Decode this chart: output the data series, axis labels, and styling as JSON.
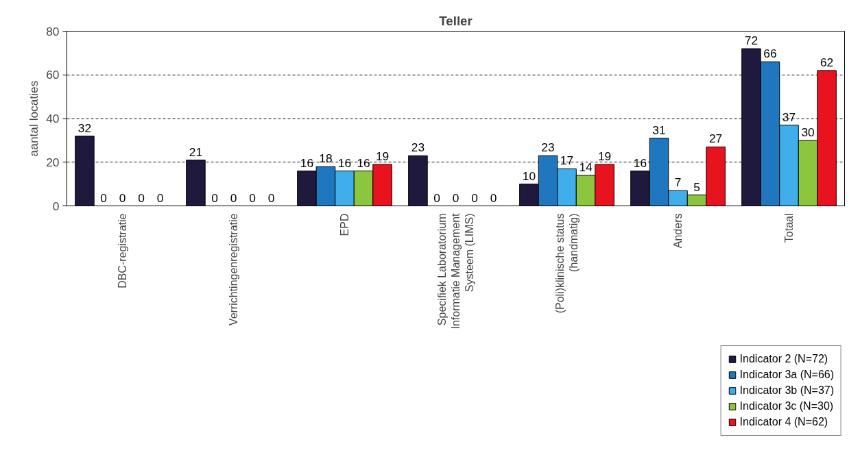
{
  "chart_data": {
    "type": "bar",
    "title": "Teller",
    "ylabel": "aantal locaties",
    "categories": [
      "DBC-registratie",
      "Verrichtingenregistratie",
      "EPD",
      "Specifiek Laboratorium Informatie Management Systeem (LIMS)",
      "(Poli)klinische status (handmatig)",
      "Anders",
      "Totaal"
    ],
    "series": [
      {
        "name": "Indicator 2 (N=72)",
        "color": "#1f1a3d",
        "values": [
          32,
          21,
          16,
          23,
          10,
          16,
          72
        ]
      },
      {
        "name": "Indicator 3a (N=66)",
        "color": "#1f77c0",
        "values": [
          0,
          0,
          18,
          0,
          23,
          31,
          66
        ]
      },
      {
        "name": "Indicator 3b (N=37)",
        "color": "#3faeea",
        "values": [
          0,
          0,
          16,
          0,
          17,
          7,
          37
        ]
      },
      {
        "name": "Indicator 3c (N=30)",
        "color": "#8cc63f",
        "values": [
          0,
          0,
          16,
          0,
          14,
          5,
          30
        ]
      },
      {
        "name": "Indicator 4 (N=62)",
        "color": "#e8131f",
        "values": [
          0,
          0,
          19,
          0,
          19,
          27,
          62
        ]
      }
    ],
    "ylim": [
      0,
      80
    ],
    "yticks": [
      0,
      20,
      40,
      60,
      80
    ],
    "grid": "y",
    "legend": "bottom right",
    "data_labels": true
  }
}
